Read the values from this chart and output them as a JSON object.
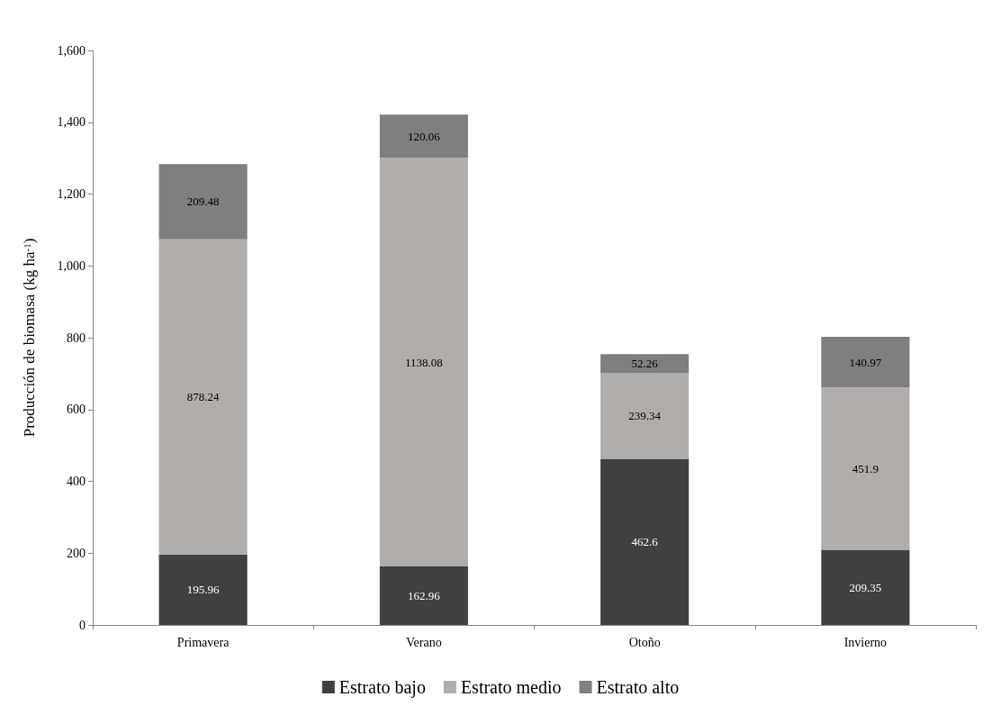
{
  "chart_data": {
    "type": "bar",
    "ylabel": "Producción de biomasa (kg ha$^{-1}$)",
    "categories": [
      "Primavera",
      "Verano",
      "Otoño",
      "Invierno"
    ],
    "stacked": true,
    "data_labels": true,
    "legend": "bottom",
    "grid": false,
    "ylim": [
      0,
      1600
    ],
    "yticks": [
      0,
      200,
      400,
      600,
      800,
      {
        "value": 1000,
        "label": "1,000"
      },
      {
        "value": 1200,
        "label": "1,200"
      },
      {
        "value": 1400,
        "label": "1,400"
      },
      {
        "value": 1600,
        "label": "1,600"
      }
    ],
    "series": [
      {
        "name": "Estrato bajo",
        "color": "#404040",
        "values": [
          195.96,
          162.96,
          462.6,
          209.35
        ]
      },
      {
        "name": "Estrato medio",
        "color": "#b1adab",
        "values": [
          878.24,
          1138.08,
          239.34,
          451.9
        ]
      },
      {
        "name": "Estrato alto",
        "color": "#7f7f7f",
        "values": [
          209.48,
          120.06,
          52.26,
          140.97
        ]
      }
    ]
  }
}
